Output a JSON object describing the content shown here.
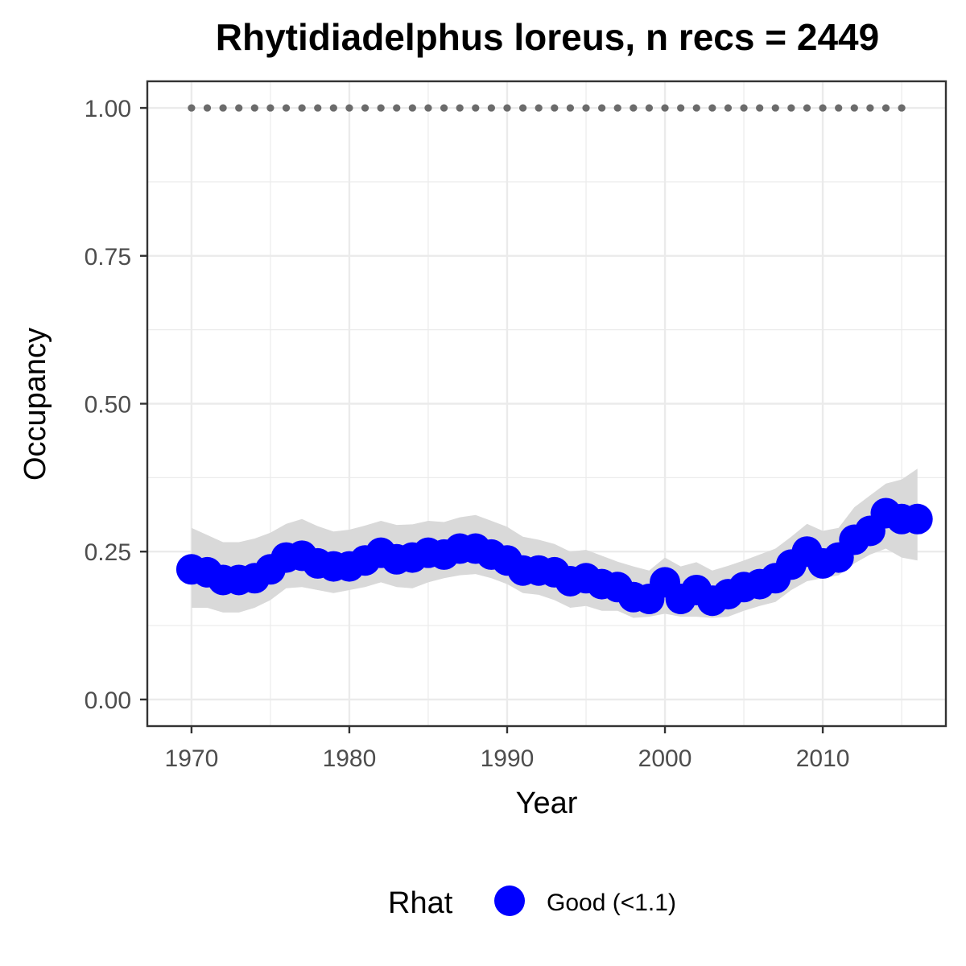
{
  "chart_data": {
    "type": "line",
    "title": "Rhytidiadelphus loreus, n recs = 2449",
    "xlabel": "Year",
    "ylabel": "Occupancy",
    "xlim": [
      1967.2,
      2017.8
    ],
    "ylim": [
      -0.045,
      1.045
    ],
    "x_ticks": [
      1970,
      1980,
      1990,
      2000,
      2010
    ],
    "x_tick_labels": [
      "1970",
      "1980",
      "1990",
      "2000",
      "2010"
    ],
    "y_ticks": [
      0,
      0.25,
      0.5,
      0.75,
      1.0
    ],
    "y_tick_labels": [
      "0.00",
      "0.25",
      "0.50",
      "0.75",
      "1.00"
    ],
    "grid": true,
    "legend_position": "bottom",
    "legend": {
      "title": "Rhat",
      "entries": [
        {
          "label": "Good (<1.1)",
          "color": "#0000ff"
        }
      ]
    },
    "colors": {
      "points": "#0000ff",
      "ribbon": "#d9d9d9",
      "reference": "#6b6b6b",
      "grid": "#ebebeb",
      "panel_border": "#333333"
    },
    "reference_series": {
      "name": "reference",
      "x": [
        1970,
        1971,
        1972,
        1973,
        1974,
        1975,
        1976,
        1977,
        1978,
        1979,
        1980,
        1981,
        1982,
        1983,
        1984,
        1985,
        1986,
        1987,
        1988,
        1989,
        1990,
        1991,
        1992,
        1993,
        1994,
        1995,
        1996,
        1997,
        1998,
        1999,
        2000,
        2001,
        2002,
        2003,
        2004,
        2005,
        2006,
        2007,
        2008,
        2009,
        2010,
        2011,
        2012,
        2013,
        2014,
        2015
      ],
      "value": 1.0
    },
    "series": [
      {
        "name": "Good (<1.1)",
        "x": [
          1970,
          1971,
          1972,
          1973,
          1974,
          1975,
          1976,
          1977,
          1978,
          1979,
          1980,
          1981,
          1982,
          1983,
          1984,
          1985,
          1986,
          1987,
          1988,
          1989,
          1990,
          1991,
          1992,
          1993,
          1994,
          1995,
          1996,
          1997,
          1998,
          1999,
          2000,
          2001,
          2002,
          2003,
          2004,
          2005,
          2006,
          2007,
          2008,
          2009,
          2010,
          2011,
          2012,
          2013,
          2014,
          2015,
          2016
        ],
        "y": [
          0.22,
          0.215,
          0.202,
          0.202,
          0.205,
          0.22,
          0.24,
          0.243,
          0.23,
          0.225,
          0.225,
          0.235,
          0.248,
          0.237,
          0.24,
          0.248,
          0.245,
          0.255,
          0.255,
          0.245,
          0.235,
          0.218,
          0.218,
          0.215,
          0.2,
          0.205,
          0.195,
          0.19,
          0.173,
          0.17,
          0.198,
          0.17,
          0.185,
          0.167,
          0.178,
          0.19,
          0.195,
          0.205,
          0.228,
          0.25,
          0.23,
          0.24,
          0.27,
          0.285,
          0.315,
          0.305,
          0.305
        ],
        "lower": [
          0.155,
          0.155,
          0.147,
          0.147,
          0.155,
          0.168,
          0.188,
          0.19,
          0.185,
          0.18,
          0.185,
          0.19,
          0.198,
          0.19,
          0.188,
          0.198,
          0.205,
          0.21,
          0.212,
          0.205,
          0.195,
          0.18,
          0.177,
          0.168,
          0.155,
          0.158,
          0.15,
          0.15,
          0.138,
          0.14,
          0.145,
          0.14,
          0.14,
          0.138,
          0.14,
          0.15,
          0.158,
          0.165,
          0.185,
          0.2,
          0.205,
          0.21,
          0.23,
          0.245,
          0.255,
          0.24,
          0.235
        ],
        "upper": [
          0.29,
          0.278,
          0.266,
          0.266,
          0.272,
          0.282,
          0.297,
          0.305,
          0.293,
          0.284,
          0.287,
          0.294,
          0.302,
          0.295,
          0.296,
          0.302,
          0.3,
          0.308,
          0.312,
          0.302,
          0.292,
          0.275,
          0.27,
          0.263,
          0.25,
          0.253,
          0.243,
          0.233,
          0.225,
          0.218,
          0.24,
          0.225,
          0.232,
          0.218,
          0.226,
          0.235,
          0.245,
          0.255,
          0.275,
          0.297,
          0.285,
          0.29,
          0.325,
          0.345,
          0.365,
          0.372,
          0.39
        ]
      }
    ]
  }
}
